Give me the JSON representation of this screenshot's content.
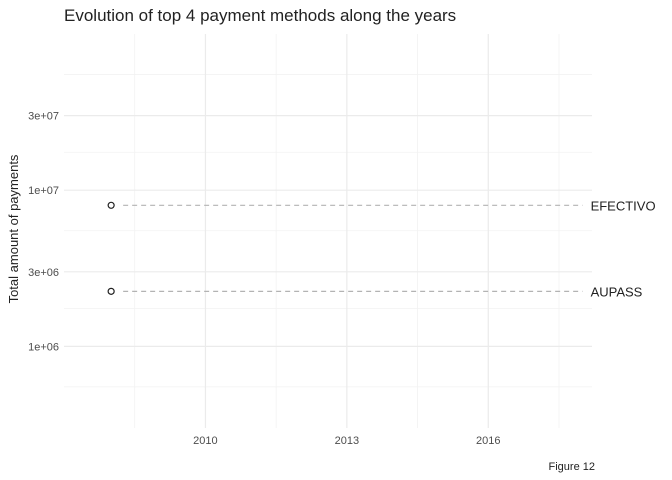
{
  "chart_data": {
    "type": "scatter",
    "title": "Evolution of top 4 payment methods along the years",
    "xlabel": "",
    "ylabel": "Total amount of payments",
    "caption": "Figure 12",
    "x_scale": "linear",
    "y_scale": "log",
    "xlim": [
      2007,
      2018.2
    ],
    "ylim": [
      300000,
      100000000
    ],
    "x_ticks": [
      2010,
      2013,
      2016
    ],
    "x_minor_ticks": [
      2008.5,
      2011.5,
      2014.5,
      2017.5
    ],
    "y_ticks": [
      {
        "value": 1000000,
        "label": "1e+06"
      },
      {
        "value": 3000000,
        "label": "3e+06"
      },
      {
        "value": 10000000,
        "label": "1e+07"
      },
      {
        "value": 30000000,
        "label": "3e+07"
      }
    ],
    "y_minor_ticks": [
      550000,
      1750000,
      5500000,
      17500000,
      55000000
    ],
    "grid": true,
    "series": [
      {
        "name": "EFECTIVO",
        "x": [
          2008
        ],
        "y": [
          8000000
        ],
        "line_to_x": 2018,
        "line_color": "#b3b3b3",
        "point_color": "#222222"
      },
      {
        "name": "AUPASS",
        "x": [
          2008
        ],
        "y": [
          2250000
        ],
        "line_to_x": 2018,
        "line_color": "#b3b3b3",
        "point_color": "#222222"
      }
    ],
    "legend": "none"
  }
}
